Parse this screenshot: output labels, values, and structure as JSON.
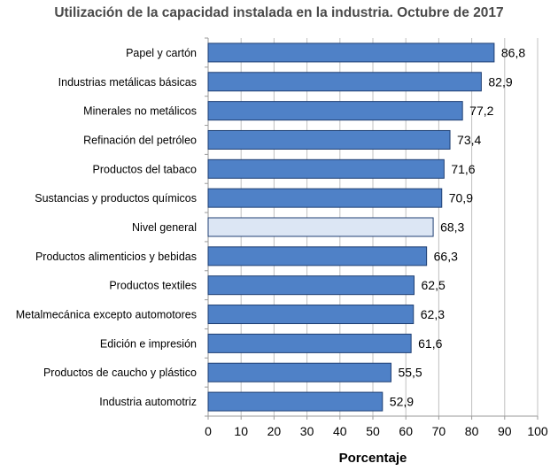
{
  "chart_data": {
    "type": "bar",
    "orientation": "horizontal",
    "title": "Utilización de la capacidad instalada en la industria. Octubre de 2017",
    "xlabel": "Porcentaje",
    "ylabel": "",
    "xlim": [
      0,
      100
    ],
    "xticks": [
      0,
      10,
      20,
      30,
      40,
      50,
      60,
      70,
      80,
      90,
      100
    ],
    "grid": true,
    "categories": [
      "Papel y cartón",
      "Industrias metálicas básicas",
      "Minerales no metálicos",
      "Refinación del petróleo",
      "Productos del tabaco",
      "Sustancias y productos químicos",
      "Nivel general",
      "Productos alimenticios  y bebidas",
      "Productos textiles",
      "Metalmecánica excepto automotores",
      "Edición e impresión",
      "Productos de caucho y plástico",
      "Industria automotriz"
    ],
    "values": [
      86.8,
      82.9,
      77.2,
      73.4,
      71.6,
      70.9,
      68.3,
      66.3,
      62.5,
      62.3,
      61.6,
      55.5,
      52.9
    ],
    "value_labels": [
      "86,8",
      "82,9",
      "77,2",
      "73,4",
      "71,6",
      "70,9",
      "68,3",
      "66,3",
      "62,5",
      "62,3",
      "61,6",
      "55,5",
      "52,9"
    ],
    "highlight_category": "Nivel general",
    "colors": {
      "bar": "#4f81c7",
      "bar_border": "#1f3f73",
      "highlight": "#dce6f4",
      "grid": "#c0c0c0",
      "text": "#000000",
      "title": "#4a4a4a"
    }
  }
}
